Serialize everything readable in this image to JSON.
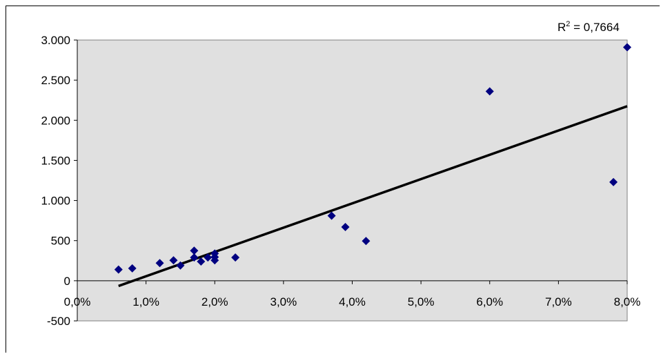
{
  "chart_data": {
    "type": "scatter",
    "title": "",
    "xlabel": "",
    "ylabel": "",
    "xlim": [
      0.0,
      8.0
    ],
    "ylim": [
      -500,
      3000
    ],
    "x_ticks": [
      0,
      1,
      2,
      3,
      4,
      5,
      6,
      7,
      8
    ],
    "x_tick_labels": [
      "0,0%",
      "1,0%",
      "2,0%",
      "3,0%",
      "4,0%",
      "5,0%",
      "6,0%",
      "7,0%",
      "8,0%"
    ],
    "y_ticks": [
      -500,
      0,
      500,
      1000,
      1500,
      2000,
      2500,
      3000
    ],
    "y_tick_labels": [
      "-500",
      "0",
      "500",
      "1.000",
      "1.500",
      "2.000",
      "2.500",
      "3.000"
    ],
    "grid": false,
    "plot_background": "#e0e0e0",
    "marker_color": "#000080",
    "trendline_color": "#000000",
    "series": [
      {
        "points": [
          {
            "x": 0.6,
            "y": 140
          },
          {
            "x": 0.8,
            "y": 155
          },
          {
            "x": 1.2,
            "y": 220
          },
          {
            "x": 1.4,
            "y": 255
          },
          {
            "x": 1.5,
            "y": 190
          },
          {
            "x": 1.7,
            "y": 375
          },
          {
            "x": 1.7,
            "y": 290
          },
          {
            "x": 1.8,
            "y": 240
          },
          {
            "x": 1.9,
            "y": 290
          },
          {
            "x": 2.0,
            "y": 340
          },
          {
            "x": 2.0,
            "y": 295
          },
          {
            "x": 2.0,
            "y": 255
          },
          {
            "x": 2.3,
            "y": 290
          },
          {
            "x": 3.7,
            "y": 810
          },
          {
            "x": 3.9,
            "y": 670
          },
          {
            "x": 4.2,
            "y": 495
          },
          {
            "x": 6.0,
            "y": 2360
          },
          {
            "x": 7.8,
            "y": 1230
          },
          {
            "x": 8.0,
            "y": 2910
          }
        ]
      }
    ],
    "trendline": {
      "x_start": 0.6,
      "y_start": -65,
      "x_end": 8.0,
      "y_end": 2175
    },
    "annotation": {
      "r2_prefix": "R",
      "r2_superscript": "2",
      "r2_suffix": " = 0,7664"
    }
  }
}
